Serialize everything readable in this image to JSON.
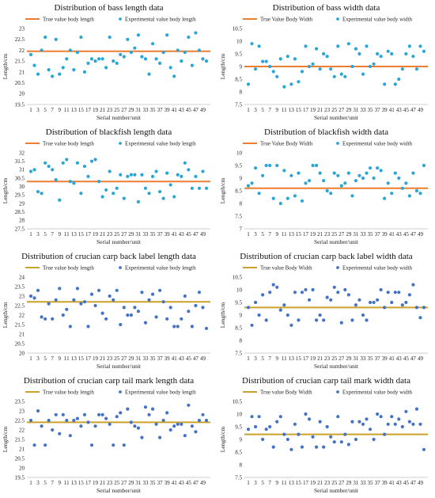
{
  "chart_data": [
    {
      "type": "scatter",
      "title": "Distribution of bass length data",
      "xlabel": "Serial number/unit",
      "ylabel": "Length/cm",
      "ylim": [
        19.5,
        23
      ],
      "yticks": [
        "19.5",
        "20",
        "20.5",
        "21",
        "21.5",
        "22",
        "22.5",
        "23"
      ],
      "xticks": [
        "1",
        "3",
        "5",
        "7",
        "9",
        "11",
        "13",
        "15",
        "17",
        "19",
        "21",
        "23",
        "25",
        "27",
        "29",
        "31",
        "33",
        "35",
        "37",
        "39",
        "41",
        "43",
        "45",
        "47",
        "49"
      ],
      "true_value": 21.95,
      "line_color": "#ed7d31",
      "point_color": "#2aa6d6",
      "legend": [
        "True value body length",
        "Experimental value body length"
      ],
      "series": [
        {
          "name": "Experimental value body length",
          "values": [
            21.8,
            21.3,
            20.9,
            22.0,
            22.6,
            21.1,
            20.8,
            22.5,
            20.9,
            21.2,
            21.6,
            22.0,
            21.1,
            21.9,
            22.6,
            21.0,
            21.4,
            21.6,
            21.5,
            21.6,
            21.6,
            21.2,
            22.6,
            21.5,
            21.4,
            21.8,
            21.7,
            22.5,
            21.9,
            22.1,
            22.7,
            21.7,
            21.6,
            20.9,
            22.3,
            21.6,
            21.4,
            21.9,
            22.7,
            21.2,
            20.8,
            22.0,
            21.5,
            21.9,
            22.6,
            21.3,
            22.8,
            22.0,
            21.6,
            21.5
          ]
        }
      ]
    },
    {
      "type": "scatter",
      "title": "Distribution of bass width data",
      "xlabel": "Serial number/unit",
      "ylabel": "Length/cm",
      "ylim": [
        7.5,
        10.5
      ],
      "yticks": [
        "7.5",
        "8",
        "8.5",
        "9",
        "9.5",
        "10",
        "10.5"
      ],
      "xticks": [
        "1",
        "3",
        "5",
        "7",
        "9",
        "11",
        "13",
        "15",
        "17",
        "19",
        "21",
        "23",
        "25",
        "27",
        "29",
        "31",
        "33",
        "35",
        "37",
        "39",
        "41",
        "43",
        "45",
        "47",
        "49"
      ],
      "true_value": 9.0,
      "line_color": "#ed7d31",
      "point_color": "#2aa6d6",
      "legend": [
        "True Value Body Width",
        "Experimental value body width"
      ],
      "series": [
        {
          "name": "Experimental value body width",
          "values": [
            8.3,
            9.9,
            8.9,
            9.8,
            9.2,
            9.2,
            9.0,
            8.8,
            8.6,
            9.3,
            8.2,
            9.4,
            8.3,
            9.3,
            8.4,
            8.8,
            9.8,
            9.0,
            9.1,
            9.7,
            8.9,
            9.5,
            9.4,
            8.9,
            8.6,
            9.8,
            8.7,
            8.6,
            9.9,
            9.0,
            9.7,
            9.5,
            8.7,
            9.8,
            9.0,
            9.1,
            9.5,
            9.4,
            8.3,
            9.6,
            9.5,
            8.3,
            8.5,
            8.9,
            9.5,
            9.8,
            9.4,
            8.9,
            9.8,
            9.6
          ]
        }
      ]
    },
    {
      "type": "scatter",
      "title": "Distribution of blackfish length data",
      "xlabel": "Serial number/unit",
      "ylabel": "Length/cm",
      "ylim": [
        27.5,
        32
      ],
      "yticks": [
        "27.5",
        "28",
        "28.5",
        "29",
        "29.5",
        "30",
        "30.5",
        "31",
        "31.5",
        "32"
      ],
      "xticks": [
        "1",
        "3",
        "5",
        "7",
        "9",
        "11",
        "13",
        "15",
        "17",
        "19",
        "21",
        "23",
        "25",
        "27",
        "29",
        "31",
        "33",
        "35",
        "37",
        "39",
        "41",
        "43",
        "45",
        "47",
        "49"
      ],
      "true_value": 30.3,
      "line_color": "#ed7d31",
      "point_color": "#2aa6d6",
      "legend": [
        "True value body length",
        "Experimental value body length"
      ],
      "series": [
        {
          "name": "Experimental value body length",
          "values": [
            30.9,
            31.0,
            29.7,
            29.6,
            31.4,
            31.2,
            31.0,
            30.4,
            29.2,
            31.4,
            31.6,
            30.3,
            30.2,
            31.4,
            29.6,
            31.2,
            30.6,
            31.5,
            31.6,
            30.3,
            29.4,
            29.8,
            30.9,
            29.6,
            29.9,
            30.7,
            29.3,
            30.6,
            30.7,
            30.7,
            29.1,
            30.7,
            29.9,
            29.6,
            30.6,
            30.9,
            29.7,
            29.3,
            30.8,
            30.1,
            29.4,
            30.7,
            30.6,
            31.4,
            31.0,
            29.9,
            30.6,
            29.9,
            30.9,
            29.9
          ]
        }
      ]
    },
    {
      "type": "scatter",
      "title": "Distribution of blackfish width data",
      "xlabel": "Serial number/unit",
      "ylabel": "Length/cm",
      "ylim": [
        7,
        10
      ],
      "yticks": [
        "7",
        "7.5",
        "8",
        "8.5",
        "9",
        "9.5",
        "10"
      ],
      "xticks": [
        "1",
        "3",
        "5",
        "7",
        "9",
        "11",
        "13",
        "15",
        "17",
        "19",
        "21",
        "23",
        "25",
        "27",
        "29",
        "31",
        "33",
        "35",
        "37",
        "39",
        "41",
        "43",
        "45",
        "47",
        "49"
      ],
      "true_value": 8.6,
      "line_color": "#ed7d31",
      "point_color": "#2aa6d6",
      "legend": [
        "True Value Body Width",
        "Experimental value body width"
      ],
      "series": [
        {
          "name": "Experimental value body width",
          "values": [
            8.7,
            8.8,
            9.4,
            8.4,
            9.1,
            9.5,
            9.5,
            8.2,
            9.5,
            8.0,
            9.3,
            8.2,
            9.1,
            8.3,
            9.2,
            8.1,
            8.8,
            8.9,
            9.5,
            9.5,
            9.2,
            8.9,
            8.5,
            8.4,
            9.2,
            9.1,
            8.7,
            8.8,
            9.2,
            8.3,
            8.9,
            9.1,
            9.0,
            9.2,
            9.4,
            9.0,
            9.4,
            9.3,
            8.2,
            8.8,
            8.4,
            9.2,
            9.0,
            8.6,
            8.8,
            8.3,
            9.2,
            8.5,
            8.4,
            9.5
          ]
        }
      ]
    },
    {
      "type": "scatter",
      "title": "Distribution of crucian carp back label length data",
      "xlabel": "Serial number/unit",
      "ylabel": "Length/cm",
      "ylim": [
        20,
        24
      ],
      "yticks": [
        "20",
        "20.5",
        "21",
        "21.5",
        "22",
        "22.5",
        "23",
        "23.5",
        "24"
      ],
      "xticks": [
        "1",
        "3",
        "5",
        "7",
        "9",
        "11",
        "13",
        "15",
        "17",
        "19",
        "21",
        "23",
        "25",
        "27",
        "29",
        "31",
        "33",
        "35",
        "37",
        "39",
        "41",
        "43",
        "45",
        "47",
        "49"
      ],
      "true_value": 22.7,
      "line_color": "#c9a227",
      "point_color": "#4472c4",
      "legend": [
        "True value body length",
        "Experimental value body length"
      ],
      "series": [
        {
          "name": "Experimental value body length",
          "values": [
            23.0,
            22.9,
            23.3,
            21.9,
            21.8,
            22.6,
            21.8,
            22.8,
            23.4,
            22.0,
            22.3,
            21.4,
            22.8,
            23.4,
            22.6,
            22.7,
            21.4,
            23.1,
            22.5,
            23.3,
            22.1,
            21.8,
            23.0,
            22.8,
            23.3,
            21.5,
            22.4,
            22.0,
            22.0,
            22.4,
            22.2,
            23.2,
            21.6,
            22.8,
            23.1,
            21.9,
            23.3,
            22.7,
            21.8,
            22.4,
            21.4,
            21.4,
            21.8,
            23.0,
            22.2,
            21.4,
            22.5,
            23.2,
            22.4,
            21.3
          ]
        }
      ]
    },
    {
      "type": "scatter",
      "title": "Distribution of crucian carp back label width data",
      "xlabel": "Serial number/unit",
      "ylabel": "Length/cm",
      "ylim": [
        7.5,
        10.5
      ],
      "yticks": [
        "7.5",
        "8",
        "8.5",
        "9",
        "9.5",
        "10",
        "10.5"
      ],
      "xticks": [
        "1",
        "3",
        "5",
        "7",
        "9",
        "11",
        "13",
        "15",
        "17",
        "19",
        "21",
        "23",
        "25",
        "27",
        "29",
        "31",
        "33",
        "35",
        "37",
        "39",
        "41",
        "43",
        "45",
        "47",
        "49"
      ],
      "true_value": 9.3,
      "line_color": "#c9a227",
      "point_color": "#4472c4",
      "legend": [
        "True value Body Width",
        "Experimental value body width"
      ],
      "series": [
        {
          "name": "Experimental value body width",
          "values": [
            9.3,
            8.6,
            9.5,
            9.0,
            9.8,
            8.8,
            9.9,
            10.2,
            10.1,
            9.2,
            9.4,
            9.0,
            8.6,
            9.9,
            8.8,
            9.9,
            10.0,
            9.6,
            10.0,
            8.8,
            9.0,
            8.8,
            9.7,
            9.6,
            10.1,
            9.9,
            8.7,
            10.0,
            9.8,
            8.8,
            9.4,
            9.6,
            9.0,
            8.8,
            9.5,
            9.5,
            9.6,
            10.0,
            9.3,
            9.9,
            9.5,
            9.9,
            9.9,
            9.4,
            9.5,
            9.8,
            10.2,
            9.3,
            8.9,
            9.3
          ]
        }
      ]
    },
    {
      "type": "scatter",
      "title": "Distribution of crucian carp tail mark length data",
      "xlabel": "Serial number/unit",
      "ylabel": "Length/cm",
      "ylim": [
        19.5,
        23.5
      ],
      "yticks": [
        "19.5",
        "20",
        "20.5",
        "21",
        "21.5",
        "22",
        "22.5",
        "23",
        "23.5"
      ],
      "xticks": [
        "1",
        "3",
        "5",
        "7",
        "9",
        "11",
        "13",
        "15",
        "17",
        "19",
        "21",
        "23",
        "25",
        "27",
        "29",
        "31",
        "33",
        "35",
        "37",
        "39",
        "41",
        "43",
        "45",
        "47",
        "49"
      ],
      "true_value": 22.4,
      "line_color": "#c9a227",
      "point_color": "#4472c4",
      "legend": [
        "True value body length",
        "Experimental value body length"
      ],
      "series": [
        {
          "name": "Experimental value body length",
          "values": [
            22.5,
            21.2,
            23.0,
            22.2,
            21.2,
            22.5,
            22.0,
            22.8,
            21.8,
            22.8,
            22.5,
            21.7,
            22.5,
            22.6,
            22.2,
            22.8,
            22.4,
            21.2,
            22.2,
            22.8,
            22.8,
            22.6,
            22.3,
            21.2,
            22.7,
            22.9,
            21.2,
            23.1,
            22.4,
            22.2,
            22.1,
            21.6,
            23.2,
            22.8,
            23.1,
            22.3,
            21.6,
            22.5,
            22.9,
            22.0,
            22.2,
            22.3,
            22.3,
            21.7,
            23.3,
            22.2,
            21.9,
            22.5,
            22.8,
            22.5
          ]
        }
      ]
    },
    {
      "type": "scatter",
      "title": "Distribution of crucian carp tail mark width data",
      "xlabel": "Serial number/unit",
      "ylabel": "Length/cm",
      "ylim": [
        7.5,
        10.5
      ],
      "yticks": [
        "7.5",
        "8",
        "8.5",
        "9",
        "9.5",
        "10",
        "10.5"
      ],
      "xticks": [
        "1",
        "3",
        "5",
        "7",
        "9",
        "11",
        "13",
        "15",
        "17",
        "19",
        "21",
        "23",
        "25",
        "27",
        "29",
        "31",
        "33",
        "35",
        "37",
        "39",
        "41",
        "43",
        "45",
        "47",
        "49"
      ],
      "true_value": 9.2,
      "line_color": "#c9a227",
      "point_color": "#4472c4",
      "legend": [
        "True value Body Width",
        "Experimental value body width"
      ],
      "series": [
        {
          "name": "Experimental value body width",
          "values": [
            9.4,
            9.9,
            9.5,
            9.9,
            9.0,
            9.4,
            9.5,
            8.7,
            9.7,
            9.9,
            9.2,
            9.0,
            8.6,
            9.6,
            9.2,
            8.7,
            10.0,
            9.8,
            9.1,
            8.7,
            9.7,
            8.7,
            9.5,
            9.1,
            8.9,
            9.9,
            8.9,
            9.2,
            8.8,
            9.7,
            9.0,
            9.7,
            9.6,
            9.8,
            9.4,
            9.0,
            10.0,
            9.9,
            9.2,
            9.6,
            9.9,
            9.6,
            9.8,
            9.5,
            10.1,
            9.7,
            9.6,
            10.2,
            9.6,
            8.6
          ]
        }
      ]
    }
  ]
}
